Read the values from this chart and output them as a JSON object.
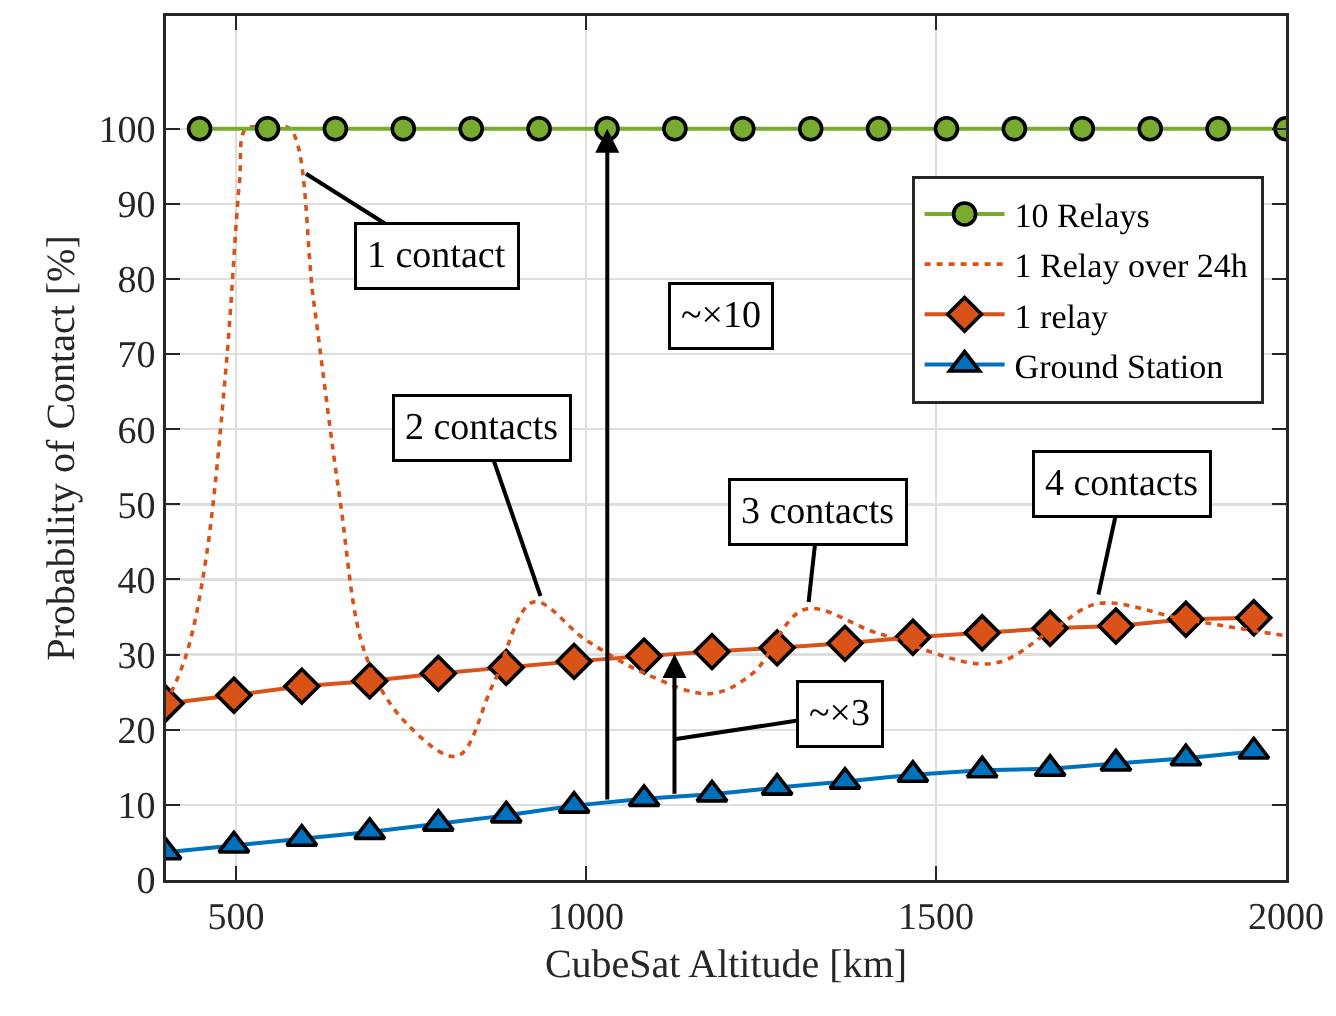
{
  "chart_data": {
    "type": "line",
    "xlabel": "CubeSat Altitude [km]",
    "ylabel": "Probability of Contact [%]",
    "xlim": [
      400,
      2000
    ],
    "xticks": [
      500,
      1000,
      1500,
      2000
    ],
    "ylim": [
      0,
      115
    ],
    "yticks": [
      0,
      10,
      20,
      30,
      40,
      50,
      60,
      70,
      80,
      90,
      100
    ],
    "grid": true,
    "legend": "top right",
    "series": [
      {
        "name": "10 Relays",
        "color": "#77ac30",
        "marker": "circle",
        "line_style": "solid",
        "x": [
          448,
          545,
          642,
          739,
          836,
          933,
          1030,
          1127,
          1224,
          1321,
          1418,
          1515,
          1612,
          1709,
          1806,
          1903,
          2000
        ],
        "values": [
          100,
          100,
          100,
          100,
          100,
          100,
          100,
          100,
          100,
          100,
          100,
          100,
          100,
          100,
          100,
          100,
          100
        ]
      },
      {
        "name": "1 Relay over 24h",
        "color": "#d95319",
        "marker": "none",
        "line_style": "dotted",
        "x": [
          400,
          429,
          457,
          486,
          505,
          514,
          545,
          577,
          611,
          648,
          685,
          742,
          816,
          867,
          925,
          999,
          1084,
          1177,
          1238,
          1312,
          1418,
          1580,
          1666,
          1732,
          1855,
          2000
        ],
        "values": [
          23.5,
          30,
          42.7,
          68.5,
          93,
          100,
          100,
          100,
          77,
          51,
          30,
          21,
          16.5,
          26,
          37,
          32,
          27.5,
          24.8,
          27.5,
          36,
          32.8,
          28.8,
          33.3,
          36.8,
          34.7,
          32.5
        ]
      },
      {
        "name": "1 relay",
        "color": "#d95319",
        "marker": "diamond",
        "line_style": "solid",
        "x": [
          400,
          497,
          594,
          691,
          789,
          886,
          983,
          1083,
          1180,
          1273,
          1370,
          1467,
          1566,
          1663,
          1757,
          1857,
          1954
        ],
        "values": [
          23.5,
          24.6,
          25.8,
          26.5,
          27.5,
          28.3,
          29.1,
          29.8,
          30.4,
          30.9,
          31.5,
          32.3,
          32.9,
          33.5,
          33.8,
          34.7,
          34.9
        ]
      },
      {
        "name": "Ground Station",
        "color": "#0072bd",
        "marker": "triangle",
        "line_style": "solid",
        "x": [
          400,
          497,
          594,
          691,
          789,
          886,
          983,
          1083,
          1180,
          1273,
          1370,
          1467,
          1566,
          1663,
          1757,
          1857,
          1954
        ],
        "values": [
          3.7,
          4.6,
          5.5,
          6.4,
          7.5,
          8.6,
          9.9,
          10.8,
          11.4,
          12.3,
          13.1,
          14.0,
          14.6,
          14.8,
          15.5,
          16.2,
          17.1
        ]
      }
    ],
    "annotations": [
      {
        "text": "1 contact",
        "x": 600,
        "y": 94
      },
      {
        "text": "2 contacts",
        "x": 935,
        "y": 37.8
      },
      {
        "text": "3 contacts",
        "x": 1318,
        "y": 37
      },
      {
        "text": "4 contacts",
        "x": 1732,
        "y": 38
      },
      "~×10",
      "~×3"
    ]
  }
}
